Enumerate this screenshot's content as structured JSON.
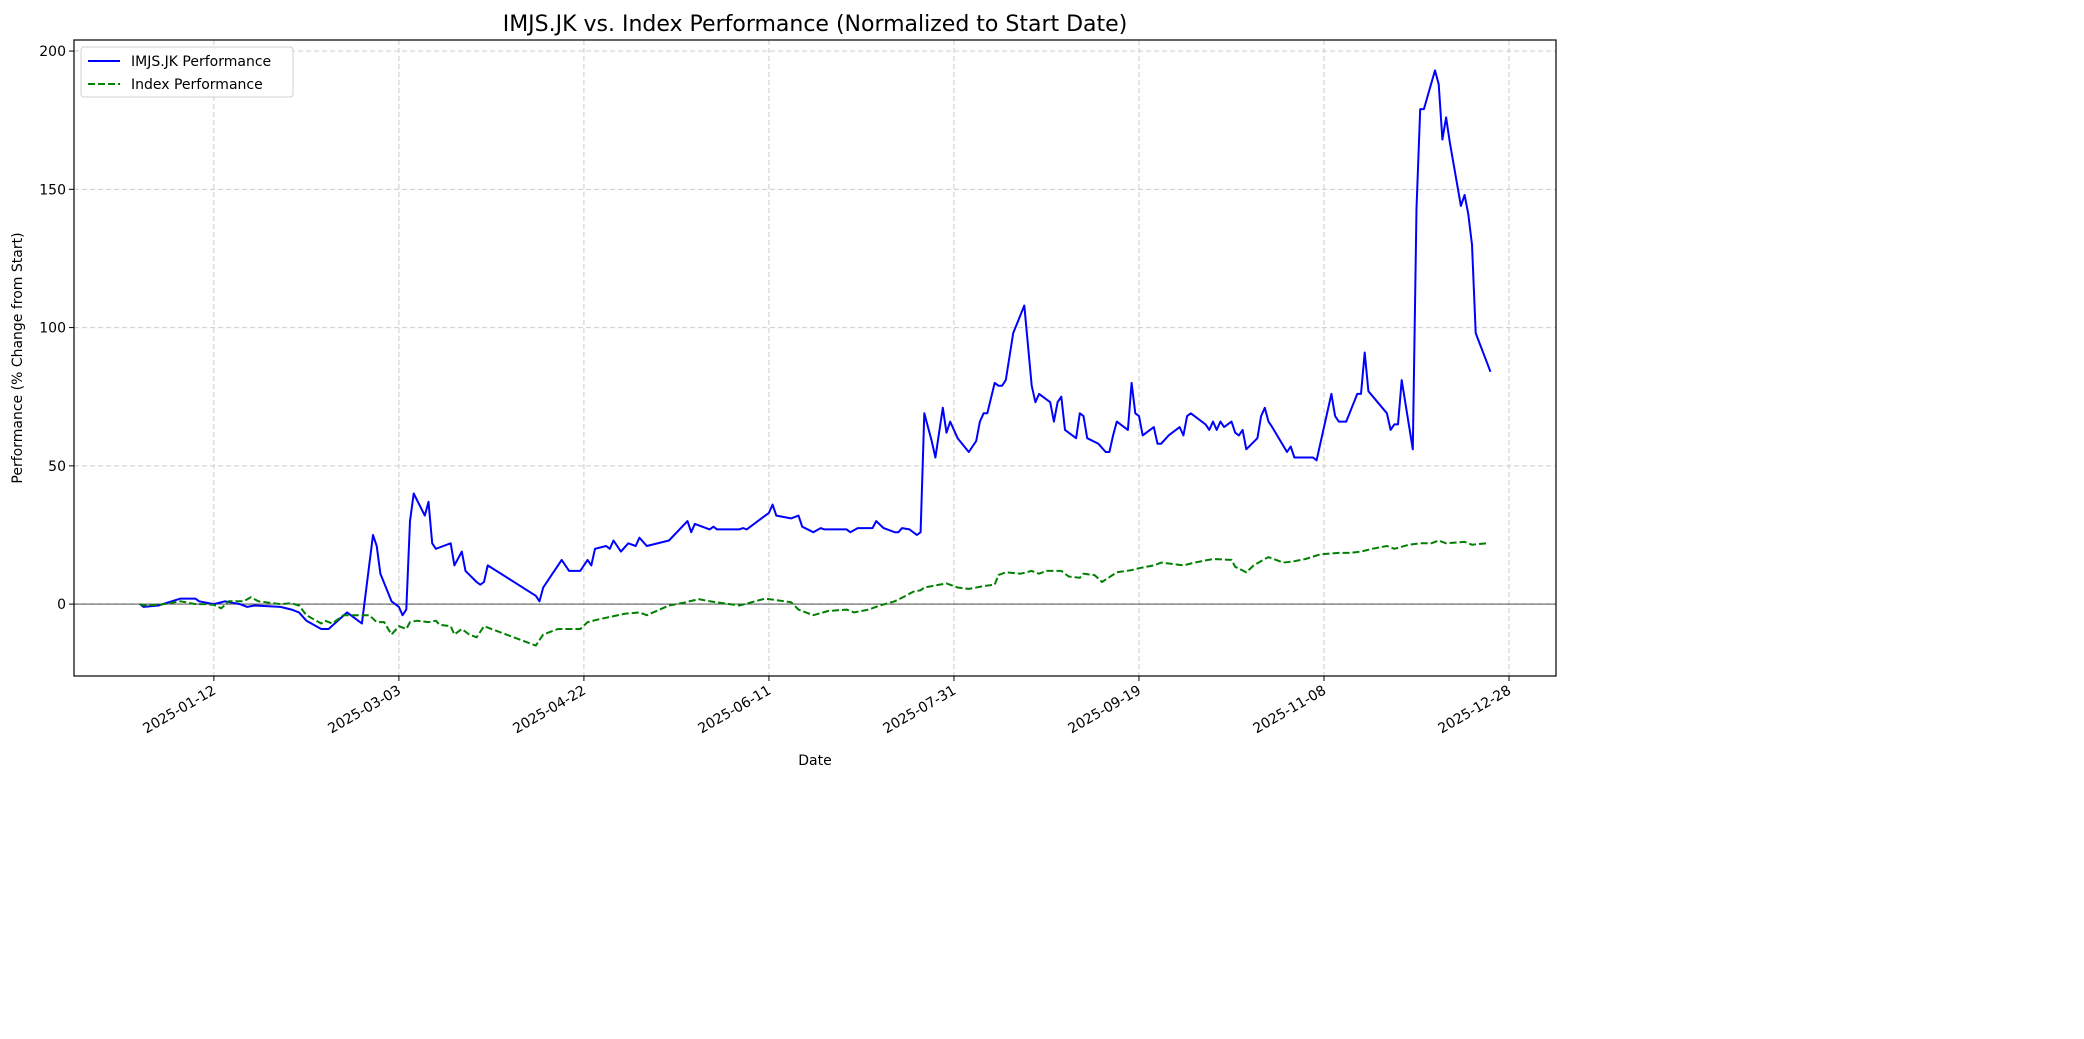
{
  "chart_data": {
    "type": "line",
    "title": "IMJS.JK vs. Index Performance (Normalized to Start Date)",
    "xlabel": "Date",
    "ylabel": "Performance (% Change from Start)",
    "x_unit": "days since 2024-12-23",
    "x_origin_date": "2024-12-23",
    "xlim_days": [
      -17.8,
      382.7
    ],
    "ylim": [
      -26,
      204
    ],
    "grid": true,
    "legend_position": "top-left",
    "reference_line_y": 0,
    "x_ticks": [
      {
        "day": 20,
        "label": "2025-01-12"
      },
      {
        "day": 70,
        "label": "2025-03-03"
      },
      {
        "day": 120,
        "label": "2025-04-22"
      },
      {
        "day": 170,
        "label": "2025-06-11"
      },
      {
        "day": 220,
        "label": "2025-07-31"
      },
      {
        "day": 270,
        "label": "2025-09-19"
      },
      {
        "day": 320,
        "label": "2025-11-08"
      },
      {
        "day": 370,
        "label": "2025-12-28"
      }
    ],
    "y_ticks": [
      0,
      50,
      100,
      150,
      200
    ],
    "series": [
      {
        "name": "IMJS.JK Performance",
        "color": "#0000ff",
        "style": "solid",
        "points": [
          [
            0,
            0
          ],
          [
            1,
            -1
          ],
          [
            5,
            -0.5
          ],
          [
            11,
            2
          ],
          [
            15,
            2
          ],
          [
            16,
            1
          ],
          [
            20,
            0
          ],
          [
            23,
            1
          ],
          [
            27,
            0
          ],
          [
            29,
            -1
          ],
          [
            31,
            -0.5
          ],
          [
            38,
            -1
          ],
          [
            41,
            -2
          ],
          [
            43,
            -3
          ],
          [
            45,
            -6
          ],
          [
            49,
            -9
          ],
          [
            51,
            -9
          ],
          [
            56,
            -3
          ],
          [
            58,
            -5
          ],
          [
            60,
            -7
          ],
          [
            63,
            25
          ],
          [
            64,
            21
          ],
          [
            65,
            11
          ],
          [
            68,
            1
          ],
          [
            70,
            -1
          ],
          [
            71,
            -4
          ],
          [
            72,
            -2
          ],
          [
            73,
            30
          ],
          [
            74,
            40
          ],
          [
            77,
            32
          ],
          [
            78,
            37
          ],
          [
            79,
            22
          ],
          [
            80,
            20
          ],
          [
            82,
            21
          ],
          [
            84,
            22
          ],
          [
            85,
            14
          ],
          [
            87,
            19
          ],
          [
            88,
            12
          ],
          [
            91,
            8
          ],
          [
            92,
            7
          ],
          [
            93,
            8
          ],
          [
            94,
            14
          ],
          [
            107,
            3
          ],
          [
            108,
            1
          ],
          [
            109,
            6
          ],
          [
            112,
            12
          ],
          [
            114,
            16
          ],
          [
            115,
            14
          ],
          [
            116,
            12
          ],
          [
            119,
            12
          ],
          [
            121,
            16
          ],
          [
            122,
            14
          ],
          [
            123,
            20
          ],
          [
            126,
            21
          ],
          [
            127,
            20
          ],
          [
            128,
            23
          ],
          [
            130,
            19
          ],
          [
            132,
            22
          ],
          [
            134,
            21
          ],
          [
            135,
            24
          ],
          [
            137,
            21
          ],
          [
            143,
            23
          ],
          [
            148,
            30
          ],
          [
            149,
            26
          ],
          [
            150,
            29
          ],
          [
            154,
            27
          ],
          [
            155,
            28
          ],
          [
            156,
            27
          ],
          [
            162,
            27
          ],
          [
            163,
            27.5
          ],
          [
            164,
            27
          ],
          [
            170,
            33
          ],
          [
            171,
            36
          ],
          [
            172,
            32
          ],
          [
            176,
            31
          ],
          [
            178,
            32
          ],
          [
            179,
            28
          ],
          [
            182,
            26
          ],
          [
            184,
            27.5
          ],
          [
            185,
            27
          ],
          [
            191,
            27
          ],
          [
            192,
            26
          ],
          [
            194,
            27.5
          ],
          [
            198,
            27.5
          ],
          [
            199,
            30
          ],
          [
            201,
            27.5
          ],
          [
            204,
            26
          ],
          [
            205,
            26
          ],
          [
            206,
            27.5
          ],
          [
            208,
            27
          ],
          [
            210,
            25
          ],
          [
            211,
            26
          ],
          [
            212,
            69
          ],
          [
            214,
            59
          ],
          [
            215,
            53
          ],
          [
            217,
            71
          ],
          [
            218,
            62
          ],
          [
            219,
            66
          ],
          [
            221,
            60
          ],
          [
            224,
            55
          ],
          [
            226,
            59
          ],
          [
            227,
            66
          ],
          [
            228,
            69
          ],
          [
            229,
            69
          ],
          [
            231,
            80
          ],
          [
            232,
            79
          ],
          [
            233,
            79
          ],
          [
            234,
            81
          ],
          [
            236,
            98
          ],
          [
            239,
            108
          ],
          [
            241,
            79
          ],
          [
            242,
            73
          ],
          [
            243,
            76
          ],
          [
            246,
            73
          ],
          [
            247,
            66
          ],
          [
            248,
            73
          ],
          [
            249,
            75
          ],
          [
            250,
            63
          ],
          [
            253,
            60
          ],
          [
            254,
            69
          ],
          [
            255,
            68
          ],
          [
            256,
            60
          ],
          [
            259,
            58
          ],
          [
            261,
            55
          ],
          [
            262,
            55
          ],
          [
            263,
            61
          ],
          [
            264,
            66
          ],
          [
            267,
            63
          ],
          [
            268,
            80
          ],
          [
            269,
            69
          ],
          [
            270,
            68
          ],
          [
            271,
            61
          ],
          [
            274,
            64
          ],
          [
            275,
            58
          ],
          [
            276,
            58
          ],
          [
            278,
            61
          ],
          [
            281,
            64
          ],
          [
            282,
            61
          ],
          [
            283,
            68
          ],
          [
            284,
            69
          ],
          [
            288,
            65
          ],
          [
            289,
            63
          ],
          [
            290,
            66
          ],
          [
            291,
            63
          ],
          [
            292,
            66
          ],
          [
            293,
            64
          ],
          [
            295,
            66
          ],
          [
            296,
            62
          ],
          [
            297,
            61
          ],
          [
            298,
            63
          ],
          [
            299,
            56
          ],
          [
            302,
            60
          ],
          [
            303,
            68
          ],
          [
            304,
            71
          ],
          [
            305,
            66
          ],
          [
            306,
            64
          ],
          [
            310,
            55
          ],
          [
            311,
            57
          ],
          [
            312,
            53
          ],
          [
            317,
            53
          ],
          [
            318,
            52
          ],
          [
            319,
            58
          ],
          [
            322,
            76
          ],
          [
            323,
            68
          ],
          [
            324,
            66
          ],
          [
            326,
            66
          ],
          [
            329,
            76
          ],
          [
            330,
            76
          ],
          [
            331,
            91
          ],
          [
            332,
            77
          ],
          [
            337,
            69
          ],
          [
            338,
            63
          ],
          [
            339,
            65
          ],
          [
            340,
            65
          ],
          [
            341,
            81
          ],
          [
            344,
            56
          ],
          [
            345,
            143
          ],
          [
            346,
            179
          ],
          [
            347,
            179
          ],
          [
            350,
            193
          ],
          [
            351,
            188
          ],
          [
            352,
            168
          ],
          [
            353,
            176
          ],
          [
            354,
            167
          ],
          [
            357,
            144
          ],
          [
            358,
            148
          ],
          [
            359,
            141
          ],
          [
            360,
            130
          ],
          [
            361,
            98
          ],
          [
            365,
            84
          ]
        ]
      },
      {
        "name": "Index Performance",
        "color": "#008000",
        "style": "dashed",
        "points": [
          [
            0,
            0
          ],
          [
            1,
            -0.5
          ],
          [
            5,
            -0.3
          ],
          [
            11,
            1
          ],
          [
            15,
            0
          ],
          [
            18,
            0
          ],
          [
            20,
            -0.3
          ],
          [
            22,
            -1.5
          ],
          [
            24,
            1
          ],
          [
            28,
            1
          ],
          [
            30,
            2.5
          ],
          [
            32,
            1
          ],
          [
            38,
            0
          ],
          [
            41,
            0.3
          ],
          [
            43,
            -0.5
          ],
          [
            45,
            -4
          ],
          [
            49,
            -7
          ],
          [
            50,
            -6
          ],
          [
            52,
            -7
          ],
          [
            55,
            -4
          ],
          [
            58,
            -4
          ],
          [
            62,
            -4
          ],
          [
            64,
            -6.5
          ],
          [
            66,
            -6.5
          ],
          [
            68,
            -11
          ],
          [
            70,
            -8
          ],
          [
            72,
            -9
          ],
          [
            73,
            -6.5
          ],
          [
            75,
            -6
          ],
          [
            78,
            -6.5
          ],
          [
            80,
            -6
          ],
          [
            81,
            -7.5
          ],
          [
            84,
            -8
          ],
          [
            85,
            -11
          ],
          [
            87,
            -9
          ],
          [
            89,
            -11
          ],
          [
            91,
            -12
          ],
          [
            93,
            -8
          ],
          [
            107,
            -15
          ],
          [
            108,
            -13
          ],
          [
            109,
            -11
          ],
          [
            113,
            -9
          ],
          [
            119,
            -9
          ],
          [
            121,
            -6.5
          ],
          [
            124,
            -5.5
          ],
          [
            131,
            -3.5
          ],
          [
            135,
            -3
          ],
          [
            137,
            -4
          ],
          [
            143,
            -0.5
          ],
          [
            147,
            0.5
          ],
          [
            151,
            1.8
          ],
          [
            154,
            1
          ],
          [
            162,
            -0.5
          ],
          [
            169,
            2
          ],
          [
            176,
            0.7
          ],
          [
            178,
            -2
          ],
          [
            182,
            -4
          ],
          [
            186,
            -2.5
          ],
          [
            191,
            -2
          ],
          [
            193,
            -3
          ],
          [
            197,
            -2
          ],
          [
            200,
            -0.5
          ],
          [
            204,
            1
          ],
          [
            207,
            3
          ],
          [
            209,
            4.5
          ],
          [
            211,
            5
          ],
          [
            212,
            6
          ],
          [
            218,
            7.5
          ],
          [
            221,
            6
          ],
          [
            224,
            5.5
          ],
          [
            228,
            6.5
          ],
          [
            231,
            7
          ],
          [
            232,
            10.5
          ],
          [
            234,
            11.5
          ],
          [
            238,
            11
          ],
          [
            241,
            12
          ],
          [
            243,
            11
          ],
          [
            245,
            12
          ],
          [
            249,
            12
          ],
          [
            251,
            10
          ],
          [
            254,
            9.5
          ],
          [
            255,
            11
          ],
          [
            258,
            10.5
          ],
          [
            260,
            8
          ],
          [
            264,
            11.5
          ],
          [
            268,
            12.3
          ],
          [
            270,
            13
          ],
          [
            274,
            14
          ],
          [
            276,
            15
          ],
          [
            282,
            14
          ],
          [
            285,
            15
          ],
          [
            290,
            16.3
          ],
          [
            295,
            16
          ],
          [
            296,
            13.5
          ],
          [
            299,
            11.5
          ],
          [
            301,
            14
          ],
          [
            304,
            16.3
          ],
          [
            305,
            17
          ],
          [
            309,
            15
          ],
          [
            312,
            15.5
          ],
          [
            315,
            16.3
          ],
          [
            319,
            18
          ],
          [
            324,
            18.5
          ],
          [
            327,
            18.5
          ],
          [
            330,
            19
          ],
          [
            333,
            20
          ],
          [
            337,
            21
          ],
          [
            339,
            20
          ],
          [
            343,
            21.5
          ],
          [
            346,
            22
          ],
          [
            349,
            22
          ],
          [
            351,
            23
          ],
          [
            353,
            22
          ],
          [
            358,
            22.5
          ],
          [
            360,
            21.5
          ],
          [
            364,
            22
          ]
        ]
      }
    ]
  }
}
